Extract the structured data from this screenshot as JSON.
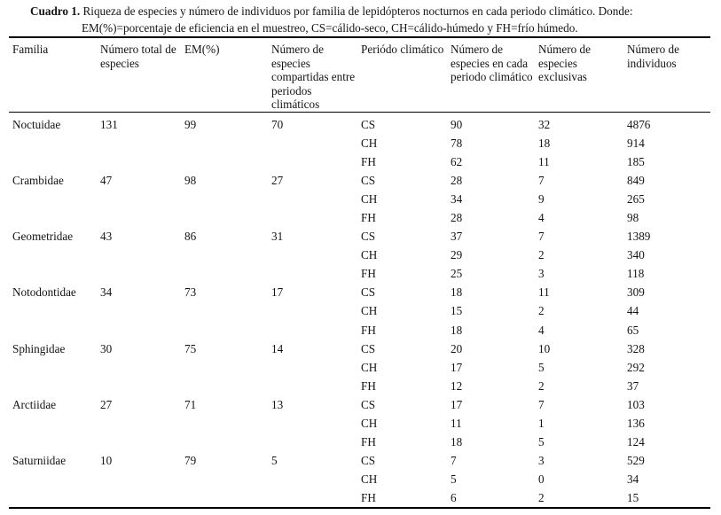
{
  "caption": {
    "label": "Cuadro 1.",
    "line1": "Riqueza de especies y número de individuos por familia de lepidópteros nocturnos en cada periodo climático. Donde:",
    "line2": "EM(%)=porcentaje de eficiencia en el muestreo, CS=cálido-seco, CH=cálido-húmedo y FH=frío húmedo."
  },
  "table": {
    "headers": [
      "Familia",
      "Número total de especies",
      "EM(%)",
      "Número de especies compartidas entre periodos climáticos",
      "Periódo climático",
      "Número de especies en cada periodo climático",
      "Número de especies exclusivas",
      "Número de individuos"
    ],
    "rows": [
      [
        "Noctuidae",
        "131",
        "99",
        "70",
        "CS",
        "90",
        "32",
        "4876"
      ],
      [
        "",
        "",
        "",
        "",
        "CH",
        "78",
        "18",
        "914"
      ],
      [
        "",
        "",
        "",
        "",
        "FH",
        "62",
        "11",
        "185"
      ],
      [
        "Crambidae",
        "47",
        "98",
        "27",
        "CS",
        "28",
        "7",
        "849"
      ],
      [
        "",
        "",
        "",
        "",
        "CH",
        "34",
        "9",
        "265"
      ],
      [
        "",
        "",
        "",
        "",
        "FH",
        "28",
        "4",
        "98"
      ],
      [
        "Geometridae",
        "43",
        "86",
        "31",
        "CS",
        "37",
        "7",
        "1389"
      ],
      [
        "",
        "",
        "",
        "",
        "CH",
        "29",
        "2",
        "340"
      ],
      [
        "",
        "",
        "",
        "",
        "FH",
        "25",
        "3",
        "118"
      ],
      [
        "Notodontidae",
        "34",
        "73",
        "17",
        "CS",
        "18",
        "11",
        "309"
      ],
      [
        "",
        "",
        "",
        "",
        "CH",
        "15",
        "2",
        "44"
      ],
      [
        "",
        "",
        "",
        "",
        "FH",
        "18",
        "4",
        "65"
      ],
      [
        "Sphingidae",
        "30",
        "75",
        "14",
        "CS",
        "20",
        "10",
        "328"
      ],
      [
        "",
        "",
        "",
        "",
        "CH",
        "17",
        "5",
        "292"
      ],
      [
        "",
        "",
        "",
        "",
        "FH",
        "12",
        "2",
        "37"
      ],
      [
        "Arctiidae",
        "27",
        "71",
        "13",
        "CS",
        "17",
        "7",
        "103"
      ],
      [
        "",
        "",
        "",
        "",
        "CH",
        "11",
        "1",
        "136"
      ],
      [
        "",
        "",
        "",
        "",
        "FH",
        "18",
        "5",
        "124"
      ],
      [
        "Saturniidae",
        "10",
        "79",
        "5",
        "CS",
        "7",
        "3",
        "529"
      ],
      [
        "",
        "",
        "",
        "",
        "CH",
        "5",
        "0",
        "34"
      ],
      [
        "",
        "",
        "",
        "",
        "FH",
        "6",
        "2",
        "15"
      ]
    ]
  }
}
